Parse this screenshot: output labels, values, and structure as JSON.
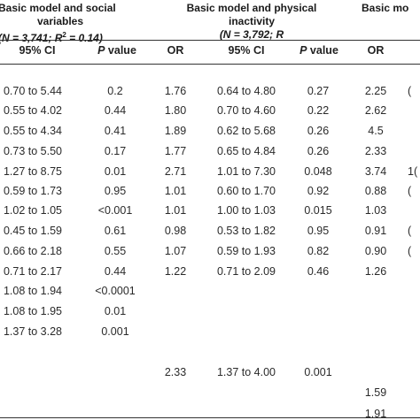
{
  "headers": {
    "group1_line1": "Basic model and social",
    "group1_line2": "variables",
    "group1_line3_pre": "(N = 3,741; ",
    "group1_line3_r": "R",
    "group1_line3_post": " = 0.14)",
    "group2_line1": "Basic model and physical",
    "group2_line2": "inactivity",
    "group2_line3_pre": "(N = 3,792; R",
    "group3_line1": "Basic mo"
  },
  "columns": {
    "ci1": "95% CI",
    "p1_italic": "P",
    "p1_rest": " value",
    "or2": "OR",
    "ci2": "95% CI",
    "p2_italic": "P",
    "p2_rest": " value",
    "or3": "OR"
  },
  "rows": [
    {
      "ci1": "0.70 to 5.44",
      "p1": "0.2",
      "or2": "1.76",
      "ci2": "0.64 to 4.80",
      "p2": "0.27",
      "or3": "2.25",
      "x": "("
    },
    {
      "ci1": "0.55 to 4.02",
      "p1": "0.44",
      "or2": "1.80",
      "ci2": "0.70 to 4.60",
      "p2": "0.22",
      "or3": "2.62",
      "x": ""
    },
    {
      "ci1": "0.55 to 4.34",
      "p1": "0.41",
      "or2": "1.89",
      "ci2": "0.62 to 5.68",
      "p2": "0.26",
      "or3": "4.5",
      "x": ""
    },
    {
      "ci1": "0.73 to 5.50",
      "p1": "0.17",
      "or2": "1.77",
      "ci2": "0.65 to 4.84",
      "p2": "0.26",
      "or3": "2.33",
      "x": ""
    },
    {
      "ci1": "1.27 to 8.75",
      "p1": "0.01",
      "or2": "2.71",
      "ci2": "1.01 to 7.30",
      "p2": "0.048",
      "or3": "3.74",
      "x": "1("
    },
    {
      "ci1": "0.59 to 1.73",
      "p1": "0.95",
      "or2": "1.01",
      "ci2": "0.60 to 1.70",
      "p2": "0.92",
      "or3": "0.88",
      "x": "("
    },
    {
      "ci1": "1.02 to 1.05",
      "p1": "<0.001",
      "or2": "1.01",
      "ci2": "1.00 to 1.03",
      "p2": "0.015",
      "or3": "1.03",
      "x": ""
    },
    {
      "ci1": "0.45 to 1.59",
      "p1": "0.61",
      "or2": "0.98",
      "ci2": "0.53 to 1.82",
      "p2": "0.95",
      "or3": "0.91",
      "x": "("
    },
    {
      "ci1": "0.66 to 2.18",
      "p1": "0.55",
      "or2": "1.07",
      "ci2": "0.59 to 1.93",
      "p2": "0.82",
      "or3": "0.90",
      "x": "("
    },
    {
      "ci1": "0.71 to 2.17",
      "p1": "0.44",
      "or2": "1.22",
      "ci2": "0.71 to 2.09",
      "p2": "0.46",
      "or3": "1.26",
      "x": ""
    },
    {
      "ci1": "1.08 to 1.94",
      "p1": "<0.0001",
      "or2": "",
      "ci2": "",
      "p2": "",
      "or3": "",
      "x": ""
    },
    {
      "ci1": "1.08 to 1.95",
      "p1": "0.01",
      "or2": "",
      "ci2": "",
      "p2": "",
      "or3": "",
      "x": ""
    },
    {
      "ci1": "1.37 to 3.28",
      "p1": "0.001",
      "or2": "",
      "ci2": "",
      "p2": "",
      "or3": "",
      "x": ""
    },
    {
      "ci1": "",
      "p1": "",
      "or2": "2.33",
      "ci2": "1.37 to 4.00",
      "p2": "0.001",
      "or3": "",
      "x": ""
    },
    {
      "ci1": "",
      "p1": "",
      "or2": "",
      "ci2": "",
      "p2": "",
      "or3": "1.59",
      "x": ""
    },
    {
      "ci1": "",
      "p1": "",
      "or2": "",
      "ci2": "",
      "p2": "",
      "or3": "1.91",
      "x": ""
    }
  ]
}
